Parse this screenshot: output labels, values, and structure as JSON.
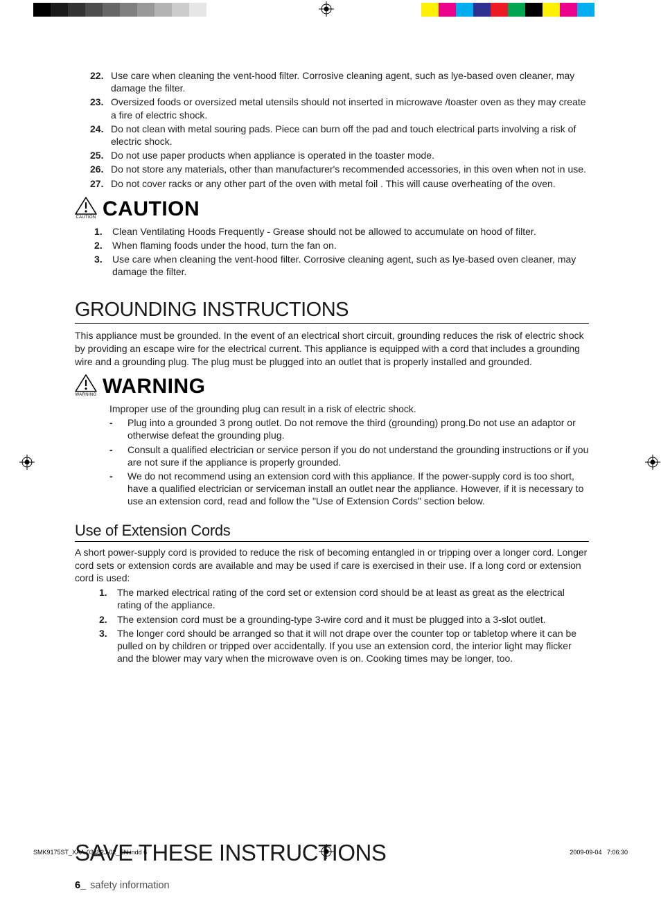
{
  "regmarks": {
    "grays": [
      "#000000",
      "#1a1a1a",
      "#333333",
      "#4d4d4d",
      "#666666",
      "#808080",
      "#999999",
      "#b3b3b3",
      "#cccccc",
      "#e6e6e6"
    ],
    "colors": [
      "#fff200",
      "#ec008c",
      "#00aeef",
      "#2e3192",
      "#ed1c24",
      "#00a651",
      "#000000",
      "#fff200",
      "#ec008c",
      "#00aeef"
    ]
  },
  "top_items": [
    {
      "n": "22.",
      "t": "Use care when cleaning the vent-hood filter. Corrosive cleaning agent, such as lye-based oven cleaner, may damage the filter."
    },
    {
      "n": "23.",
      "t": "Oversized foods or oversized metal utensils should not inserted in microwave /toaster oven as they may create a fire of electric shock."
    },
    {
      "n": "24.",
      "t": "Do not clean with metal souring pads. Piece can burn off the pad and touch electrical parts involving a risk of electric shock."
    },
    {
      "n": "25.",
      "t": "Do not use paper products when appliance is operated in the toaster mode."
    },
    {
      "n": "26.",
      "t": "Do not store any materials, other than manufacturer's recommended accessories, in this oven when not in use."
    },
    {
      "n": "27.",
      "t": "Do not cover racks or any other part of the oven with metal foil . This will cause overheating of the oven."
    }
  ],
  "caution": {
    "label_small": "CAUTION",
    "label_big": "CAUTION",
    "items": [
      {
        "n": "1.",
        "t": "Clean Ventilating Hoods Frequently - Grease should not be allowed to accumulate on hood of filter."
      },
      {
        "n": "2.",
        "t": "When flaming foods under the hood, turn the fan on."
      },
      {
        "n": "3.",
        "t": "Use care when cleaning the vent-hood filter. Corrosive cleaning agent, such as lye-based oven cleaner, may damage the filter."
      }
    ]
  },
  "grounding": {
    "heading": "GROUNDING INSTRUCTIONS",
    "para": "This appliance must be grounded. In the event of an electrical short circuit, grounding reduces the risk of electric shock by providing an escape wire for the electrical current. This appliance is equipped with a cord that includes a grounding wire and a grounding plug. The plug must be plugged into an outlet that is properly installed and grounded."
  },
  "warning": {
    "label_small": "WARNING",
    "label_big": "WARNING",
    "intro": "Improper use of the grounding plug can result in a risk of electric shock.",
    "items": [
      "Plug into a grounded 3 prong outlet. Do not remove the third (grounding) prong.Do not use an adaptor or otherwise defeat the grounding plug.",
      "Consult a qualified electrician or service person if you do not understand the grounding instructions or if you are not sure if the appliance is properly grounded.",
      "We do not recommend using an extension cord with this appliance. If the power-supply cord is too short, have a qualified electrician or serviceman install an outlet near the appliance.  However, if it is necessary to use an extension cord, read and follow the \"Use of Extension Cords\" section below."
    ]
  },
  "extension": {
    "heading": "Use of Extension Cords",
    "para": "A short power-supply cord is provided to reduce the risk of becoming entangled in or tripping over a longer cord. Longer cord sets or extension cords are available and may be used if care is exercised in their use. If a long cord or extension cord is used:",
    "items": [
      {
        "n": "1.",
        "t": "The marked electrical rating of the cord set or extension cord should be at least as great as the electrical rating of the appliance."
      },
      {
        "n": "2.",
        "t": "The extension cord must be a grounding-type 3-wire cord and it must be plugged into a 3-slot outlet."
      },
      {
        "n": "3.",
        "t": "The longer cord should be arranged so that it will not drape over the counter top or tabletop where it can be pulled on by children or tripped over accidentally. If you use an extension cord, the interior light may flicker and the blower may vary when the microwave oven is on. Cooking times may be longer, too."
      }
    ]
  },
  "save": "SAVE THESE INSTRUCTIONS",
  "footer": {
    "pagenum": "6_",
    "label": "safety information"
  },
  "printfoot": {
    "file": "SMK9175ST_XAA-03482J-02_EN.indd   6",
    "date": "2009-09-04",
    "time": "7:06:30"
  }
}
